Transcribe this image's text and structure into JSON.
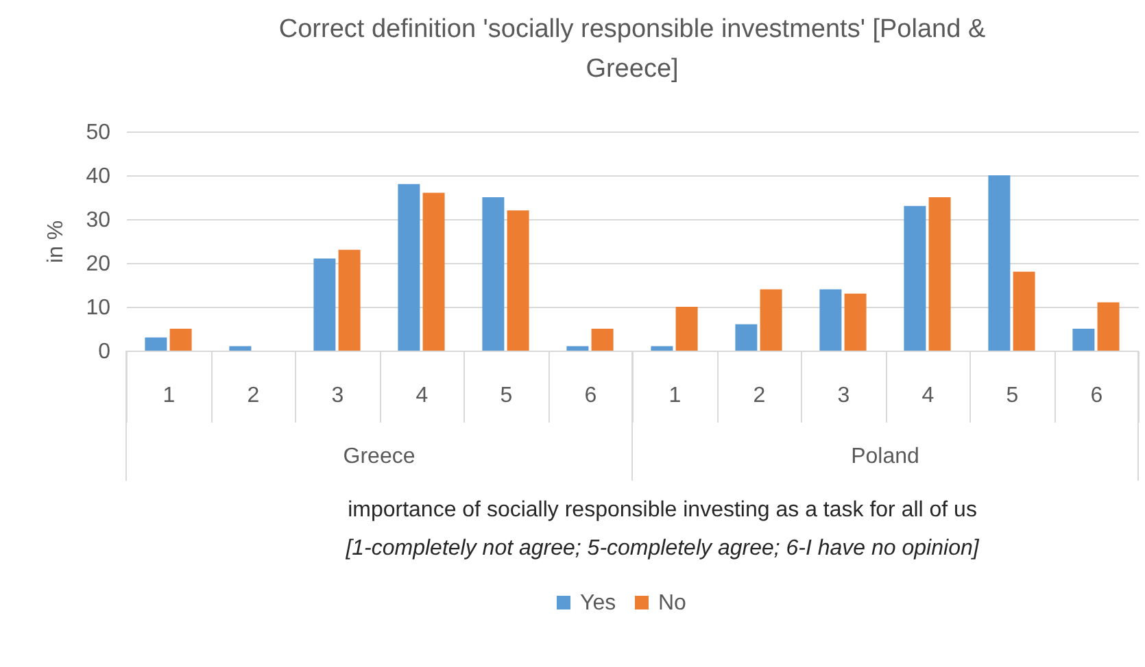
{
  "chart_data": {
    "type": "bar",
    "title": "Correct definition 'socially responsible investments' [Poland & Greece]",
    "categories": [
      "1",
      "2",
      "3",
      "4",
      "5",
      "6",
      "1",
      "2",
      "3",
      "4",
      "5",
      "6"
    ],
    "series": [
      {
        "name": "Yes",
        "color": "#5b9bd5",
        "values": [
          3,
          1,
          21,
          38,
          35,
          1,
          1,
          6,
          14,
          33,
          40,
          5
        ]
      },
      {
        "name": "No",
        "color": "#ed7d31",
        "values": [
          5,
          0,
          23,
          36,
          32,
          5,
          10,
          14,
          13,
          35,
          18,
          11
        ]
      }
    ],
    "ylabel": "in %",
    "xlabel": "importance of socially responsible investing as a task for all of us",
    "annotations": [
      "Greece",
      "Poland",
      "[1-completely not agree; 5-completely agree; 6-I have no opinion]"
    ],
    "ylim": [
      0,
      50
    ],
    "yticks": [
      0,
      10,
      20,
      30,
      40,
      50
    ],
    "grid": "y",
    "legend": "bottom"
  }
}
